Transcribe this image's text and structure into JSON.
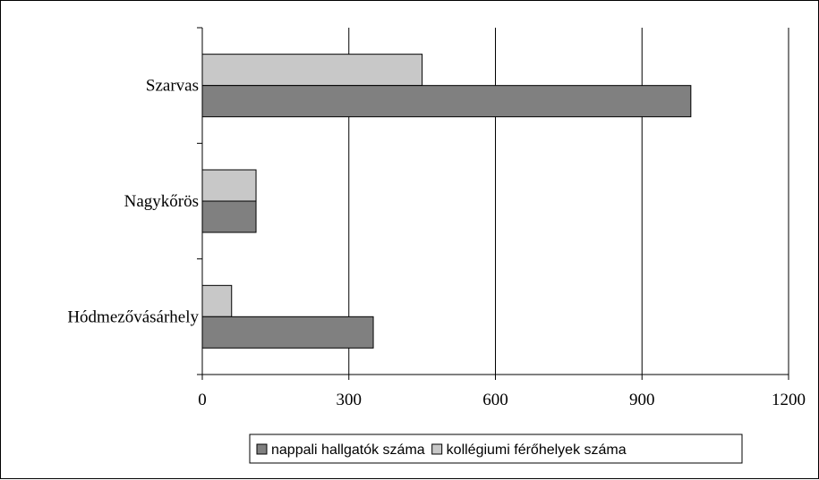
{
  "chart_data": {
    "type": "bar",
    "orientation": "horizontal",
    "categories": [
      "Szarvas",
      "Nagykőrös",
      "Hódmezővásárhely"
    ],
    "series": [
      {
        "name": "kollégiumi férőhelyek száma",
        "values": [
          450,
          110,
          60
        ],
        "color": "#c8c8c8"
      },
      {
        "name": "nappali hallgatók száma",
        "values": [
          1000,
          110,
          350
        ],
        "color": "#808080"
      }
    ],
    "xlim": [
      0,
      1200
    ],
    "x_ticks": [
      0,
      300,
      600,
      900,
      1200
    ],
    "x_tick_labels": [
      "0",
      "300",
      "600",
      "900",
      "1200"
    ],
    "grid": "vertical",
    "legend": {
      "position": "bottom",
      "entries": [
        "nappali hallgatók száma",
        "kollégiumi férőhelyek száma"
      ]
    }
  }
}
